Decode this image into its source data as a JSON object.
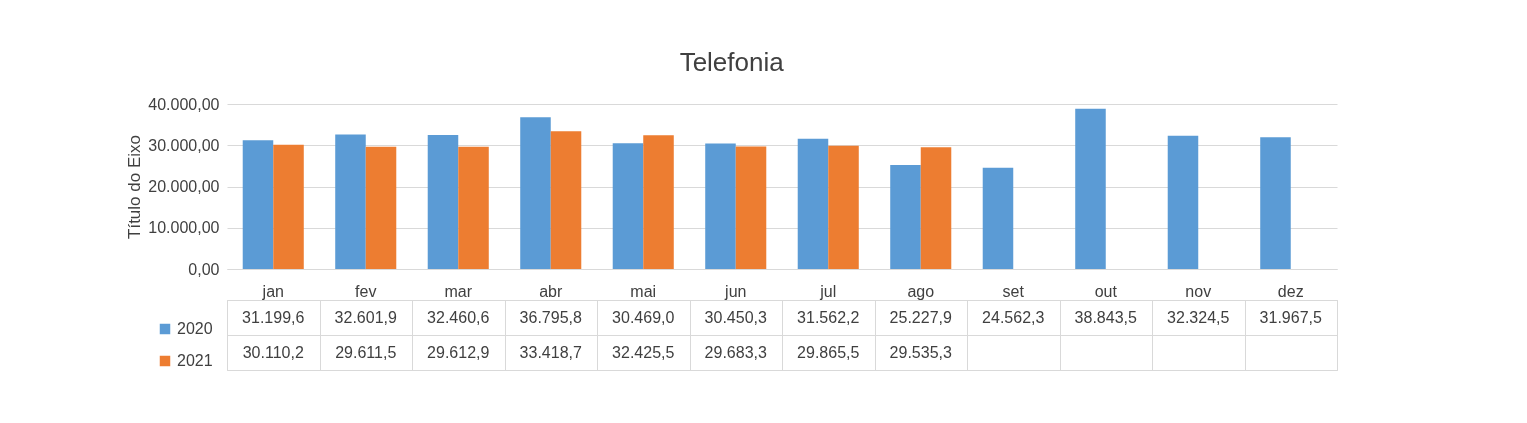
{
  "chart_data": {
    "type": "bar",
    "title": "Telefonia",
    "ylabel": "Título do Eixo",
    "categories": [
      "jan",
      "fev",
      "mar",
      "abr",
      "mai",
      "jun",
      "jul",
      "ago",
      "set",
      "out",
      "nov",
      "dez"
    ],
    "series": [
      {
        "name": "2020",
        "color": "#5b9bd5",
        "values": [
          31199.6,
          32601.9,
          32460.6,
          36795.8,
          30469.0,
          30450.3,
          31562.2,
          25227.9,
          24562.3,
          38843.5,
          32324.5,
          31967.5
        ],
        "value_labels": [
          "31.199,6",
          "32.601,9",
          "32.460,6",
          "36.795,8",
          "30.469,0",
          "30.450,3",
          "31.562,2",
          "25.227,9",
          "24.562,3",
          "38.843,5",
          "32.324,5",
          "31.967,5"
        ]
      },
      {
        "name": "2021",
        "color": "#ed7d31",
        "values": [
          30110.2,
          29611.5,
          29612.9,
          33418.7,
          32425.5,
          29683.3,
          29865.5,
          29535.3,
          null,
          null,
          null,
          null
        ],
        "value_labels": [
          "30.110,2",
          "29.611,5",
          "29.612,9",
          "33.418,7",
          "32.425,5",
          "29.683,3",
          "29.865,5",
          "29.535,3",
          null,
          null,
          null,
          null
        ]
      }
    ],
    "ylim": [
      0,
      40000
    ],
    "yticks": [
      {
        "value": 0,
        "label": "0,00"
      },
      {
        "value": 10000,
        "label": "10.000,00"
      },
      {
        "value": 20000,
        "label": "20.000,00"
      },
      {
        "value": 30000,
        "label": "30.000,00"
      },
      {
        "value": 40000,
        "label": "40.000,00"
      }
    ],
    "grid": "y",
    "legend": "bottom left"
  }
}
